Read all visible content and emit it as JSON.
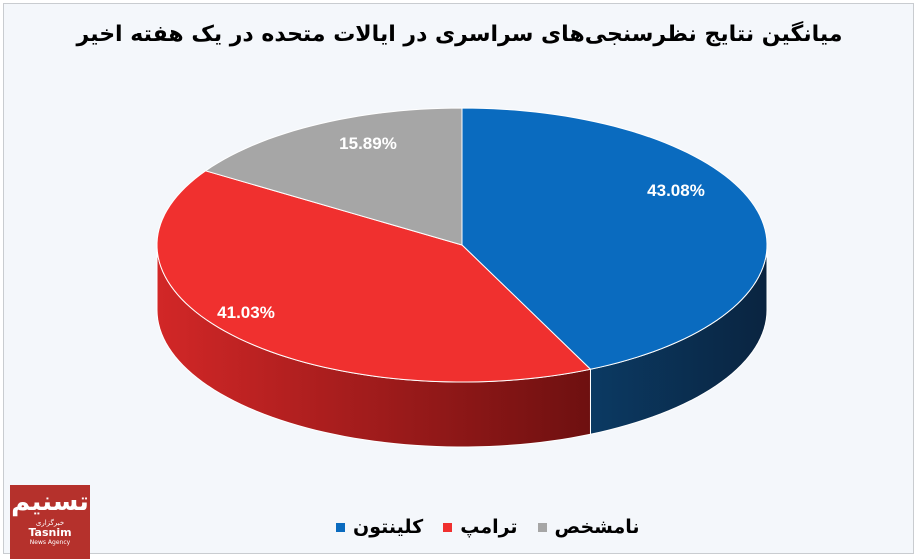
{
  "chart_data": {
    "type": "pie",
    "style": "3d",
    "title": "میانگین نتایج نظرسنجی‌های سراسری در ایالات متحده در یک هفته اخیر",
    "slices": [
      {
        "name": "کلینتون",
        "value": 43.08,
        "label": "43.08%",
        "color": "#0a6bbf"
      },
      {
        "name": "ترامپ",
        "value": 41.03,
        "label": "41.03%",
        "color": "#f0302f"
      },
      {
        "name": "نامشخص",
        "value": 15.89,
        "label": "15.89%",
        "color": "#a6a6a6"
      }
    ],
    "legend_position": "bottom"
  },
  "logo": {
    "brand": "تسنیم",
    "line1": "خبرگزاری",
    "line2": "Tasnim",
    "line3": "News Agency"
  }
}
